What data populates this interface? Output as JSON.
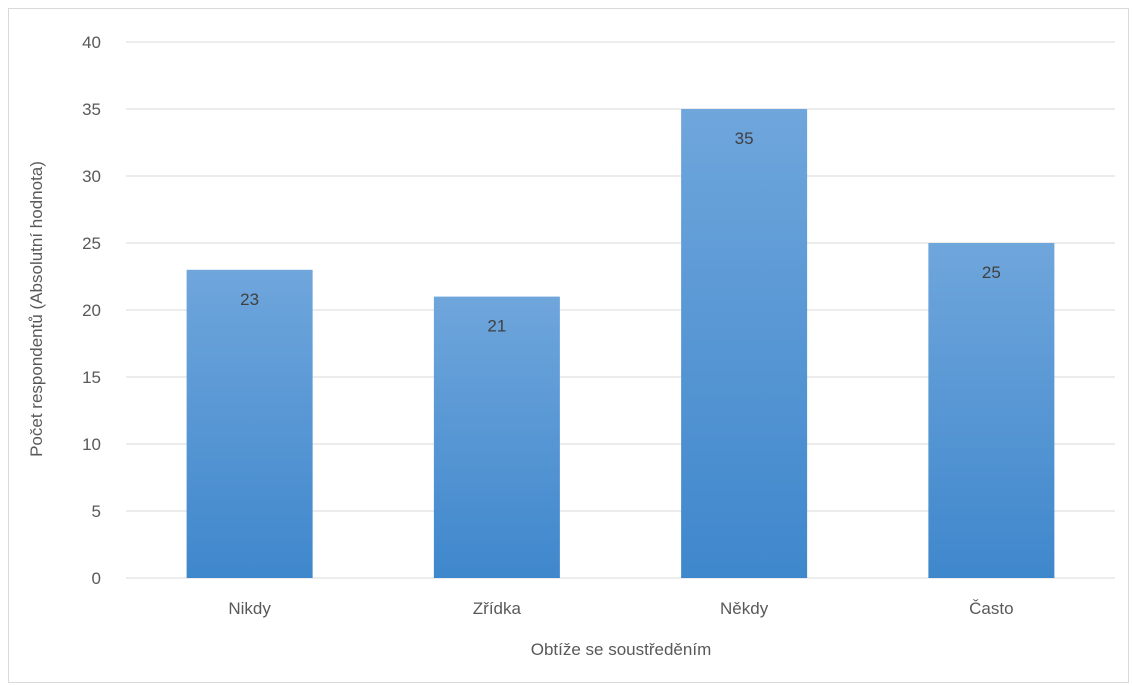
{
  "chart_data": {
    "type": "bar",
    "categories": [
      "Nikdy",
      "Zřídka",
      "Někdy",
      "Často"
    ],
    "values": [
      23,
      21,
      35,
      25
    ],
    "data_labels": [
      "23",
      "21",
      "35",
      "25"
    ],
    "xlabel": "Obtíže se soustředěním",
    "ylabel": "Počet respondentů (Absolutní hodnota)",
    "ylim": [
      0,
      40
    ],
    "yticks": [
      0,
      5,
      10,
      15,
      20,
      25,
      30,
      35,
      40
    ],
    "grid": true,
    "bar_color_top": "#6fa6dc",
    "bar_color_bottom": "#3f87cc",
    "grid_color": "#d9d9d9"
  }
}
